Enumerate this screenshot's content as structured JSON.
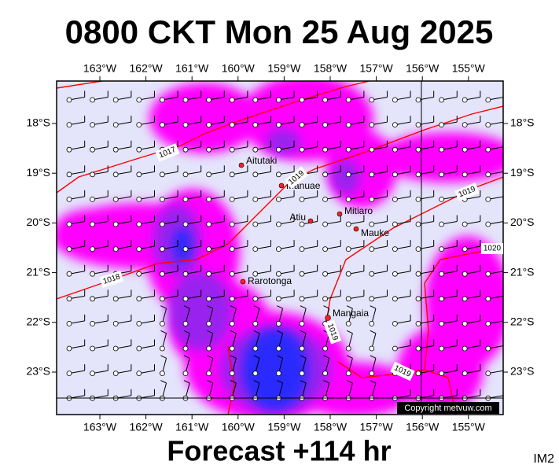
{
  "header": {
    "title": "0800 CKT Mon 25 Aug 2025"
  },
  "map": {
    "lon_labels": [
      "163°W",
      "162°W",
      "161°W",
      "160°W",
      "159°W",
      "158°W",
      "157°W",
      "156°W",
      "155°W"
    ],
    "lat_labels": [
      "18°S",
      "19°S",
      "20°S",
      "21°S",
      "22°S",
      "23°S"
    ],
    "places": [
      "Aitutaki",
      "Manuae",
      "Atiu",
      "Mitiaro",
      "Mauke",
      "Rarotonga",
      "Mangaia"
    ],
    "isobar_labels": [
      "1017",
      "1018",
      "1019",
      "1019",
      "1019",
      "1020"
    ],
    "credit": "Copyright metvuw.com"
  },
  "footer": {
    "forecast": "Forecast +114 hr",
    "code": "IM2"
  }
}
